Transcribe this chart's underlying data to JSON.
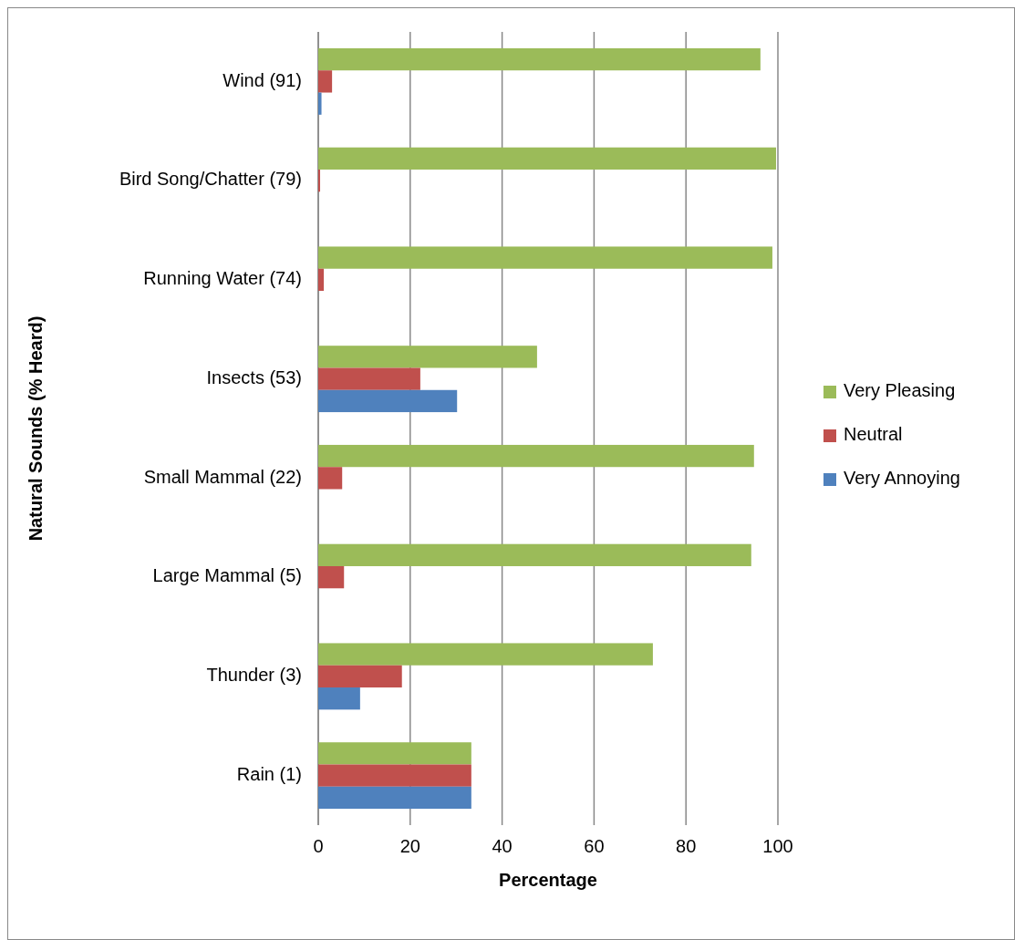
{
  "chart_data": {
    "type": "bar",
    "orientation": "horizontal",
    "xlabel": "Percentage",
    "ylabel": "Natural Sounds (% Heard)",
    "categories": [
      "Wind (91)",
      "Bird Song/Chatter (79)",
      "Running Water (74)",
      "Insects (53)",
      "Small Mammal (22)",
      "Large Mammal (5)",
      "Thunder (3)",
      "Rain (1)"
    ],
    "series": [
      {
        "name": "Very Pleasing",
        "color": "#9bbb59",
        "values": [
          96.2,
          99.6,
          98.8,
          47.6,
          94.8,
          94.2,
          72.8,
          33.3
        ]
      },
      {
        "name": "Neutral",
        "color": "#c0504d",
        "values": [
          3.0,
          0.4,
          1.2,
          22.2,
          5.2,
          5.6,
          18.2,
          33.3
        ]
      },
      {
        "name": "Very Annoying",
        "color": "#4f81bd",
        "values": [
          0.7,
          0,
          0,
          30.2,
          0,
          0,
          9.1,
          33.3
        ]
      }
    ],
    "xlim": [
      0,
      100
    ],
    "xticks": [
      0,
      20,
      40,
      60,
      80,
      100
    ],
    "grid": "x",
    "legend": "right"
  }
}
